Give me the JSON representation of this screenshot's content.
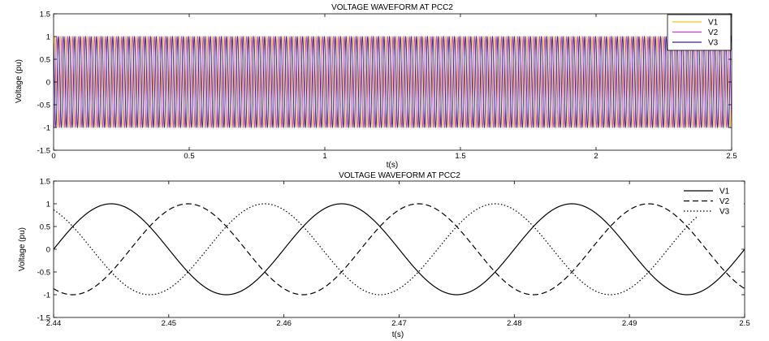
{
  "chart_data": [
    {
      "type": "line",
      "title": "VOLTAGE WAVEFORM AT PCC2",
      "xlabel": "t(s)",
      "ylabel": "Voltage (pu)",
      "xlim": [
        0,
        2.5
      ],
      "ylim": [
        -1.5,
        1.5
      ],
      "xticks": [
        0,
        0.5,
        1,
        1.5,
        2,
        2.5
      ],
      "xtick_labels": [
        "0",
        "0.5",
        "1",
        "1.5",
        "2",
        "2.5"
      ],
      "yticks": [
        -1.5,
        -1,
        -0.5,
        0,
        0.5,
        1,
        1.5
      ],
      "ytick_labels": [
        "-1.5",
        "-1",
        "-0.5",
        "0",
        "0.5",
        "1",
        "1.5"
      ],
      "grid": false,
      "legend_position": "top-right",
      "waveform": "sine",
      "frequency_hz": 50,
      "amplitude_pu": 1,
      "series": [
        {
          "name": "V1",
          "phase_deg": 0,
          "color": "#f0c020",
          "style": "solid"
        },
        {
          "name": "V2",
          "phase_deg": -120,
          "color": "#c040c0",
          "style": "solid"
        },
        {
          "name": "V3",
          "phase_deg": 120,
          "color": "#3020a0",
          "style": "solid"
        }
      ]
    },
    {
      "type": "line",
      "title": "VOLTAGE WAVEFORM AT PCC2",
      "xlabel": "t(s)",
      "ylabel": "Voltage (pu)",
      "xlim": [
        2.44,
        2.5
      ],
      "ylim": [
        -1.5,
        1.5
      ],
      "xticks": [
        2.44,
        2.45,
        2.46,
        2.47,
        2.48,
        2.49,
        2.5
      ],
      "xtick_labels": [
        "2.44",
        "2.45",
        "2.46",
        "2.47",
        "2.48",
        "2.49",
        "2.5"
      ],
      "yticks": [
        -1.5,
        -1,
        -0.5,
        0,
        0.5,
        1,
        1.5
      ],
      "ytick_labels": [
        "-1.5",
        "-1",
        "-0.5",
        "0",
        "0.5",
        "1",
        "1.5"
      ],
      "grid": false,
      "legend_position": "top-right",
      "waveform": "sine",
      "frequency_hz": 50,
      "amplitude_pu": 1,
      "series": [
        {
          "name": "V1",
          "phase_deg": 0,
          "color": "#000000",
          "style": "solid"
        },
        {
          "name": "V2",
          "phase_deg": -120,
          "color": "#000000",
          "style": "dashed"
        },
        {
          "name": "V3",
          "phase_deg": 120,
          "color": "#000000",
          "style": "dotted"
        }
      ]
    }
  ]
}
